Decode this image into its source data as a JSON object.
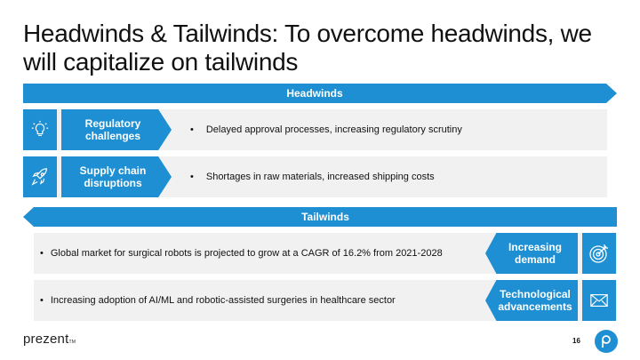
{
  "slide": {
    "title": "Headwinds & Tailwinds: To overcome headwinds, we will capitalize on tailwinds",
    "page_number": "16"
  },
  "headwinds": {
    "label": "Headwinds",
    "items": [
      {
        "icon": "lightbulb-icon",
        "name": "Regulatory challenges",
        "text": "Delayed approval processes, increasing regulatory scrutiny"
      },
      {
        "icon": "rocket-icon",
        "name": "Supply chain disruptions",
        "text": "Shortages in raw materials, increased shipping costs"
      }
    ]
  },
  "tailwinds": {
    "label": "Tailwinds",
    "items": [
      {
        "icon": "target-icon",
        "name": "Increasing demand",
        "text": "Global market for surgical robots is projected to grow at a CAGR of 16.2% from 2021-2028"
      },
      {
        "icon": "envelope-icon",
        "name": "Technological advancements",
        "text": "Increasing adoption of AI/ML and robotic-assisted surgeries in healthcare sector"
      }
    ]
  },
  "branding": {
    "logo_text": "prezent",
    "tm": "TM",
    "accent_color": "#1e8fd3"
  }
}
